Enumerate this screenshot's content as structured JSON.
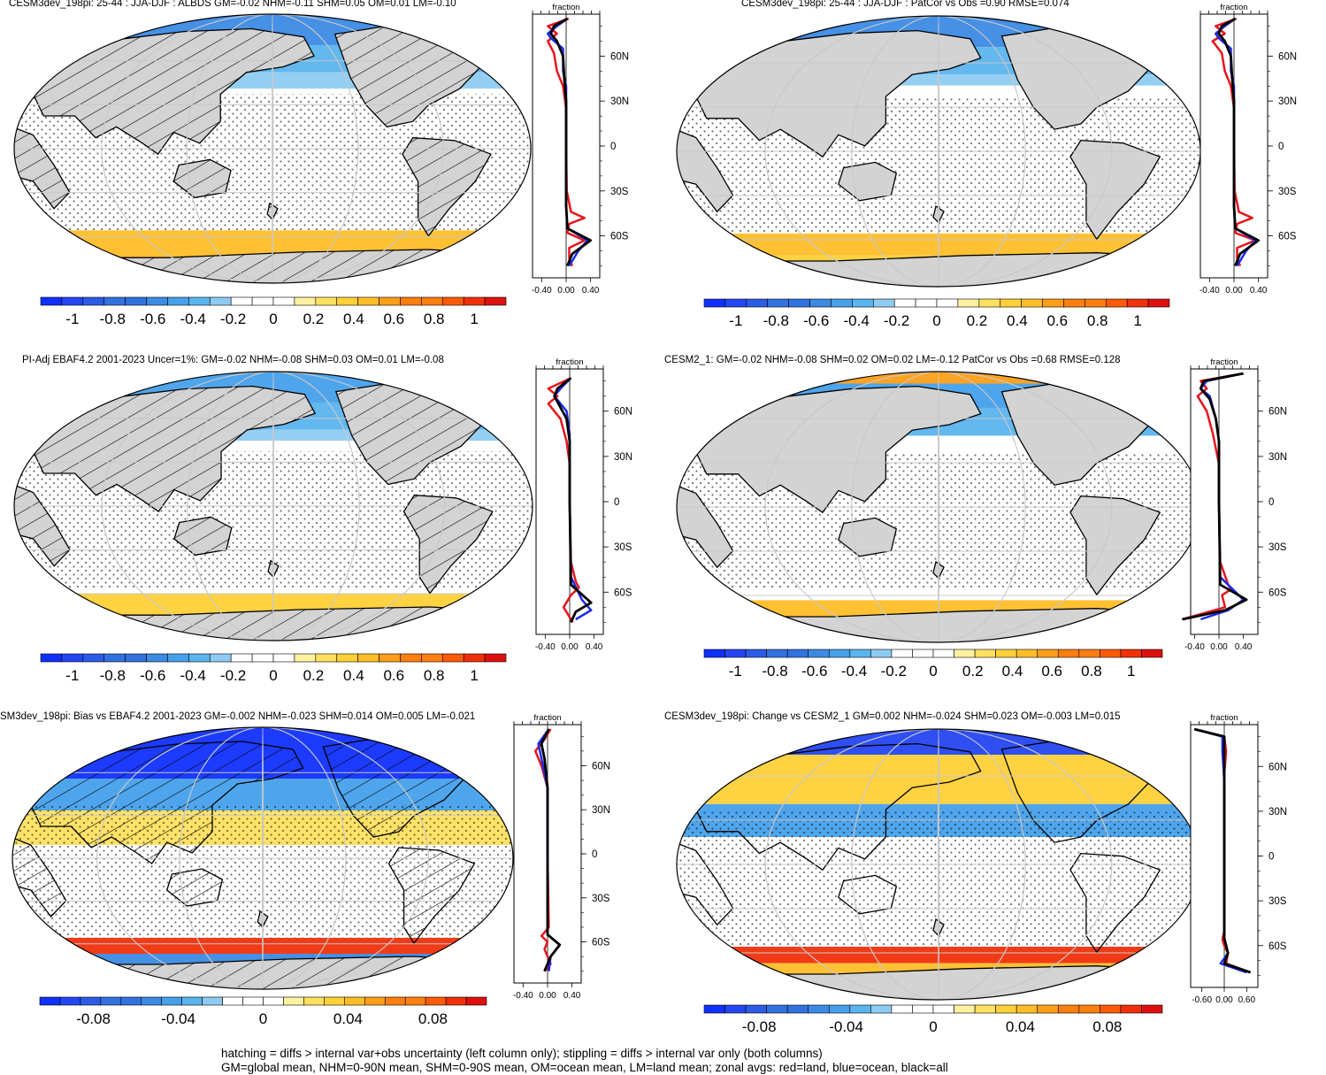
{
  "chart_data": [
    {
      "type": "map",
      "title": "CESM3dev_198pi: 25-44 : JJA-DJF : ALBDS GM=-0.02 NHM=-0.11 SHM=0.05 OM=0.01 LM=-0.10",
      "colorbar_labels": [
        "-1",
        "-0.8",
        "-0.6",
        "-0.4",
        "-0.2",
        "0",
        "0.2",
        "0.4",
        "0.6",
        "0.8",
        "1"
      ],
      "hatching": true,
      "zonal": {
        "label": "fraction",
        "x_ticks": [
          "-0.40",
          "0.00",
          "0.40"
        ],
        "y_ticks": [
          "60N",
          "30N",
          "0",
          "30S",
          "60S"
        ],
        "series": {
          "land": [
            [
              0.04,
              85
            ],
            [
              -0.3,
              80
            ],
            [
              -0.15,
              75
            ],
            [
              -0.3,
              70
            ],
            [
              -0.2,
              62
            ],
            [
              -0.15,
              50
            ],
            [
              -0.05,
              40
            ],
            [
              0,
              25
            ],
            [
              0,
              0
            ],
            [
              0.01,
              -30
            ],
            [
              0.08,
              -44
            ],
            [
              0.3,
              -48
            ],
            [
              0.05,
              -52
            ],
            [
              0.02,
              -58
            ],
            [
              0.3,
              -63
            ],
            [
              0.05,
              -68
            ],
            [
              0.05,
              -75
            ],
            [
              0.1,
              -80
            ]
          ],
          "ocean": [
            [
              0.02,
              85
            ],
            [
              -0.15,
              80
            ],
            [
              -0.3,
              75
            ],
            [
              -0.25,
              72
            ],
            [
              -0.05,
              65
            ],
            [
              -0.05,
              50
            ],
            [
              0,
              40
            ],
            [
              0,
              0
            ],
            [
              0,
              -40
            ],
            [
              0.02,
              -55
            ],
            [
              0.35,
              -63
            ],
            [
              0.2,
              -70
            ],
            [
              0.05,
              -80
            ]
          ],
          "all": [
            [
              0.02,
              85
            ],
            [
              -0.2,
              80
            ],
            [
              -0.25,
              75
            ],
            [
              -0.15,
              70
            ],
            [
              -0.05,
              60
            ],
            [
              -0.03,
              45
            ],
            [
              0,
              30
            ],
            [
              0,
              0
            ],
            [
              0,
              -40
            ],
            [
              0.02,
              -55
            ],
            [
              0.4,
              -63
            ],
            [
              0.1,
              -72
            ],
            [
              0.02,
              -80
            ]
          ]
        }
      }
    },
    {
      "type": "map",
      "title": "CESM3dev_198pi: 25-44 : JJA-DJF : PatCor vs Obs =0.90 RMSE=0.074",
      "colorbar_labels": [
        "-1",
        "-0.8",
        "-0.6",
        "-0.4",
        "-0.2",
        "0",
        "0.2",
        "0.4",
        "0.6",
        "0.8",
        "1"
      ],
      "hatching": false,
      "zonal": {
        "label": "fraction",
        "x_ticks": [
          "-0.40",
          "0.00",
          "0.40"
        ],
        "y_ticks": [
          "60N",
          "30N",
          "0",
          "30S",
          "60S"
        ],
        "series": {
          "land": [
            [
              0.04,
              85
            ],
            [
              -0.3,
              80
            ],
            [
              -0.15,
              75
            ],
            [
              -0.35,
              70
            ],
            [
              -0.2,
              62
            ],
            [
              -0.15,
              50
            ],
            [
              -0.05,
              40
            ],
            [
              0,
              25
            ],
            [
              0,
              0
            ],
            [
              0.01,
              -30
            ],
            [
              0.08,
              -44
            ],
            [
              0.3,
              -48
            ],
            [
              0.05,
              -52
            ],
            [
              0.02,
              -58
            ],
            [
              0.35,
              -63
            ],
            [
              0.05,
              -68
            ],
            [
              0.05,
              -75
            ],
            [
              0.1,
              -80
            ]
          ],
          "ocean": [
            [
              0.02,
              85
            ],
            [
              -0.15,
              80
            ],
            [
              -0.3,
              75
            ],
            [
              -0.25,
              72
            ],
            [
              -0.05,
              65
            ],
            [
              -0.05,
              50
            ],
            [
              0,
              40
            ],
            [
              0,
              0
            ],
            [
              0,
              -40
            ],
            [
              0.02,
              -55
            ],
            [
              0.35,
              -63
            ],
            [
              0.2,
              -70
            ],
            [
              0.05,
              -80
            ]
          ],
          "all": [
            [
              0.02,
              85
            ],
            [
              -0.2,
              80
            ],
            [
              -0.25,
              75
            ],
            [
              -0.15,
              70
            ],
            [
              -0.05,
              60
            ],
            [
              -0.03,
              45
            ],
            [
              0,
              30
            ],
            [
              0,
              0
            ],
            [
              0,
              -40
            ],
            [
              0.02,
              -55
            ],
            [
              0.4,
              -63
            ],
            [
              0.1,
              -72
            ],
            [
              0.02,
              -80
            ]
          ]
        }
      }
    },
    {
      "type": "map",
      "title": "PI-Adj EBAF4.2 2001-2023 Uncer=1%: GM=-0.02 NHM=-0.08 SHM=0.03 OM=0.01 LM=-0.08",
      "colorbar_labels": [
        "-1",
        "-0.8",
        "-0.6",
        "-0.4",
        "-0.2",
        "0",
        "0.2",
        "0.4",
        "0.6",
        "0.8",
        "1"
      ],
      "hatching": true,
      "zonal": {
        "label": "fraction",
        "x_ticks": [
          "-0.40",
          "0.00",
          "0.40"
        ],
        "y_ticks": [
          "60N",
          "30N",
          "0",
          "30S",
          "60S"
        ],
        "series": {
          "land": [
            [
              0.02,
              82
            ],
            [
              -0.35,
              75
            ],
            [
              -0.2,
              70
            ],
            [
              -0.35,
              65
            ],
            [
              -0.15,
              55
            ],
            [
              -0.05,
              40
            ],
            [
              0,
              25
            ],
            [
              0,
              0
            ],
            [
              0.02,
              -40
            ],
            [
              0.1,
              -53
            ],
            [
              0.15,
              -57
            ],
            [
              0.02,
              -62
            ],
            [
              -0.1,
              -70
            ],
            [
              0.05,
              -80
            ]
          ],
          "ocean": [
            [
              0.02,
              82
            ],
            [
              -0.15,
              75
            ],
            [
              -0.25,
              70
            ],
            [
              -0.05,
              60
            ],
            [
              0,
              45
            ],
            [
              0,
              0
            ],
            [
              0.02,
              -50
            ],
            [
              0.2,
              -65
            ],
            [
              0.35,
              -72
            ],
            [
              0.1,
              -78
            ]
          ],
          "all": [
            [
              0.02,
              82
            ],
            [
              -0.2,
              75
            ],
            [
              -0.25,
              70
            ],
            [
              -0.05,
              55
            ],
            [
              0,
              40
            ],
            [
              0,
              0
            ],
            [
              0.02,
              -55
            ],
            [
              0.35,
              -67
            ],
            [
              0.1,
              -73
            ],
            [
              0.02,
              -80
            ]
          ]
        }
      }
    },
    {
      "type": "map",
      "title": "CESM2_1: GM=-0.02 NHM=-0.08 SHM=0.02 OM=0.02 LM=-0.12 PatCor vs Obs =0.68 RMSE=0.128",
      "colorbar_labels": [
        "-1",
        "-0.8",
        "-0.6",
        "-0.4",
        "-0.2",
        "0",
        "0.2",
        "0.4",
        "0.6",
        "0.8",
        "1"
      ],
      "hatching": false,
      "zonal": {
        "label": "fraction",
        "x_ticks": [
          "-0.40",
          "0.00",
          "0.40"
        ],
        "y_ticks": [
          "60N",
          "30N",
          "0",
          "30S",
          "60S"
        ],
        "series": {
          "land": [
            [
              0.4,
              85
            ],
            [
              -0.3,
              80
            ],
            [
              -0.2,
              75
            ],
            [
              -0.35,
              70
            ],
            [
              -0.2,
              60
            ],
            [
              -0.1,
              45
            ],
            [
              0,
              25
            ],
            [
              0,
              0
            ],
            [
              0.02,
              -40
            ],
            [
              0.15,
              -55
            ],
            [
              0.2,
              -58
            ],
            [
              0.05,
              -62
            ],
            [
              0.1,
              -70
            ],
            [
              -0.6,
              -78
            ]
          ],
          "ocean": [
            [
              0.4,
              85
            ],
            [
              -0.2,
              80
            ],
            [
              -0.3,
              75
            ],
            [
              -0.15,
              70
            ],
            [
              -0.05,
              55
            ],
            [
              0,
              40
            ],
            [
              0,
              0
            ],
            [
              0.02,
              -50
            ],
            [
              0.4,
              -65
            ],
            [
              0.15,
              -72
            ],
            [
              -0.3,
              -78
            ]
          ],
          "all": [
            [
              0.4,
              85
            ],
            [
              -0.25,
              80
            ],
            [
              -0.3,
              75
            ],
            [
              -0.15,
              68
            ],
            [
              -0.05,
              55
            ],
            [
              0,
              40
            ],
            [
              0,
              0
            ],
            [
              0.02,
              -55
            ],
            [
              0.45,
              -65
            ],
            [
              0.1,
              -72
            ],
            [
              -0.6,
              -78
            ]
          ]
        }
      }
    },
    {
      "type": "map",
      "title": "SM3dev_198pi: Bias vs EBAF4.2 2001-2023 GM=-0.002 NHM=-0.023 SHM=0.014 OM=0.005 LM=-0.021",
      "colorbar_labels": [
        "-0.08",
        "-0.04",
        "0",
        "0.04",
        "0.08"
      ],
      "hatching": true,
      "zonal": {
        "label": "fraction",
        "x_ticks": [
          "-0.40",
          "0.00",
          "0.40"
        ],
        "y_ticks": [
          "60N",
          "30N",
          "0",
          "30S",
          "60S"
        ],
        "series": {
          "land": [
            [
              0.05,
              85
            ],
            [
              -0.05,
              78
            ],
            [
              -0.2,
              70
            ],
            [
              -0.1,
              60
            ],
            [
              0,
              45
            ],
            [
              0,
              0
            ],
            [
              0.02,
              -50
            ],
            [
              -0.1,
              -56
            ],
            [
              0,
              -60
            ],
            [
              -0.05,
              -65
            ],
            [
              0.05,
              -75
            ],
            [
              -0.05,
              -80
            ]
          ],
          "ocean": [
            [
              0.02,
              85
            ],
            [
              -0.15,
              75
            ],
            [
              -0.1,
              65
            ],
            [
              0,
              45
            ],
            [
              0,
              0
            ],
            [
              0,
              -55
            ],
            [
              0.2,
              -62
            ],
            [
              0.05,
              -70
            ],
            [
              0.02,
              -80
            ]
          ],
          "all": [
            [
              0.02,
              85
            ],
            [
              -0.1,
              75
            ],
            [
              -0.05,
              65
            ],
            [
              0,
              45
            ],
            [
              0,
              0
            ],
            [
              0,
              -55
            ],
            [
              0.2,
              -62
            ],
            [
              0.05,
              -70
            ],
            [
              -0.05,
              -80
            ]
          ]
        }
      }
    },
    {
      "type": "map",
      "title": "CESM3dev_198pi: Change vs CESM2_1 GM=0.002 NHM=-0.024 SHM=0.023 OM=-0.003 LM=0.015",
      "colorbar_labels": [
        "-0.08",
        "-0.04",
        "0",
        "0.04",
        "0.08"
      ],
      "hatching": false,
      "zonal": {
        "label": "fraction",
        "x_ticks": [
          "-0.60",
          "0.00",
          "0.60"
        ],
        "y_ticks": [
          "60N",
          "30N",
          "0",
          "30S",
          "60S"
        ],
        "series": {
          "land": [
            [
              -0.8,
              85
            ],
            [
              0,
              80
            ],
            [
              0.05,
              70
            ],
            [
              0,
              55
            ],
            [
              0,
              0
            ],
            [
              0,
              -50
            ],
            [
              -0.05,
              -56
            ],
            [
              0,
              -60
            ],
            [
              0.1,
              -65
            ],
            [
              0.05,
              -72
            ],
            [
              0.7,
              -78
            ]
          ],
          "ocean": [
            [
              -0.8,
              85
            ],
            [
              -0.05,
              80
            ],
            [
              -0.05,
              70
            ],
            [
              0,
              50
            ],
            [
              0,
              0
            ],
            [
              0,
              -55
            ],
            [
              0.1,
              -65
            ],
            [
              -0.1,
              -72
            ],
            [
              0.6,
              -78
            ]
          ],
          "all": [
            [
              -0.8,
              85
            ],
            [
              0,
              80
            ],
            [
              0,
              70
            ],
            [
              0,
              50
            ],
            [
              0,
              0
            ],
            [
              0,
              -55
            ],
            [
              0.1,
              -65
            ],
            [
              0,
              -72
            ],
            [
              0.7,
              -78
            ]
          ]
        }
      }
    }
  ],
  "colors": {
    "land": "#e8141c",
    "ocean": "#1a2ae8",
    "all": "#000000",
    "land_mask": "#d3d3d3",
    "palette": [
      "#1030ff",
      "#2446f2",
      "#2c5ce6",
      "#3272e0",
      "#3c8ae4",
      "#46a0ea",
      "#5ab4ee",
      "#8ecbf2",
      "#ffffff",
      "#ffffff",
      "#fff1a0",
      "#ffe060",
      "#ffd038",
      "#ffbe28",
      "#ff9e18",
      "#ff7e10",
      "#ff5a08",
      "#f0300a",
      "#dd1010"
    ]
  },
  "footer": {
    "line1": "hatching = diffs > internal var+obs uncertainty (left column only); stippling = diffs > internal var only (both columns)",
    "line2": "GM=global mean, NHM=0-90N mean, SHM=0-90S mean, OM=ocean mean, LM=land mean; zonal avgs: red=land, blue=ocean, black=all"
  }
}
